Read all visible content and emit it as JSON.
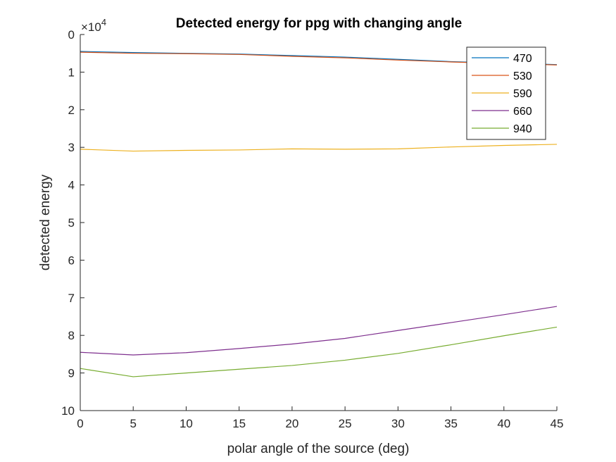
{
  "chart_data": {
    "type": "line",
    "title": "Detected energy for ppg with changing angle",
    "xlabel": "polar angle of the source (deg)",
    "ylabel": "detected energy",
    "y_exponent_label": "×10",
    "y_exponent_power": "4",
    "y_reversed": true,
    "xlim": [
      0,
      45
    ],
    "ylim": [
      0,
      100000
    ],
    "x_ticks": [
      0,
      5,
      10,
      15,
      20,
      25,
      30,
      35,
      40,
      45
    ],
    "x_tick_labels": [
      "0",
      "5",
      "10",
      "15",
      "20",
      "25",
      "30",
      "35",
      "40",
      "45"
    ],
    "y_ticks": [
      0,
      10000,
      20000,
      30000,
      40000,
      50000,
      60000,
      70000,
      80000,
      90000,
      100000
    ],
    "y_tick_labels": [
      "0",
      "1",
      "2",
      "3",
      "4",
      "5",
      "6",
      "7",
      "8",
      "9",
      "10"
    ],
    "grid": false,
    "legend_position": "top-right",
    "x": [
      0,
      5,
      10,
      15,
      20,
      25,
      30,
      35,
      40,
      45
    ],
    "series": [
      {
        "name": "470",
        "color": "#0072bd",
        "values": [
          4500,
          4800,
          5000,
          5200,
          5600,
          6000,
          6600,
          7200,
          7600,
          8000
        ]
      },
      {
        "name": "530",
        "color": "#d95319",
        "values": [
          4700,
          5000,
          5100,
          5300,
          5800,
          6200,
          6800,
          7300,
          7700,
          8100
        ]
      },
      {
        "name": "590",
        "color": "#edb120",
        "values": [
          30500,
          31000,
          30800,
          30700,
          30400,
          30500,
          30400,
          29900,
          29500,
          29200
        ]
      },
      {
        "name": "660",
        "color": "#7e2f8e",
        "values": [
          84500,
          85200,
          84600,
          83500,
          82300,
          80800,
          78700,
          76600,
          74500,
          72300
        ]
      },
      {
        "name": "940",
        "color": "#77ac30",
        "values": [
          88800,
          91000,
          90000,
          89000,
          88000,
          86600,
          84800,
          82500,
          80100,
          77800
        ]
      }
    ]
  }
}
